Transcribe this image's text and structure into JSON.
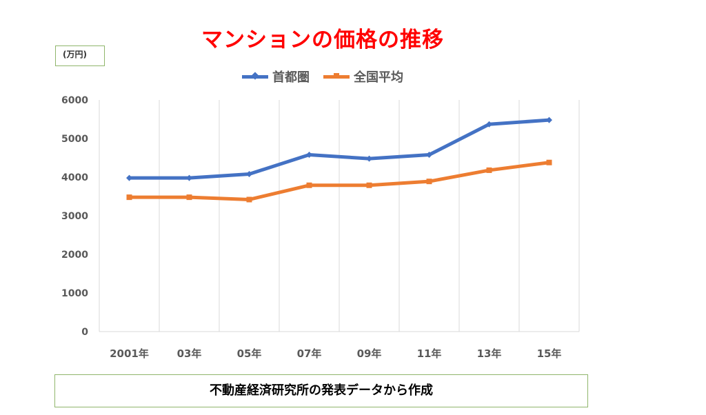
{
  "chart_data": {
    "type": "line",
    "title": "マンションの価格の推移",
    "unit_label": "(万円)",
    "categories": [
      "2001年",
      "03年",
      "05年",
      "07年",
      "09年",
      "11年",
      "13年",
      "15年"
    ],
    "ylim": [
      0,
      6000
    ],
    "yticks": [
      "0",
      "1000",
      "2000",
      "3000",
      "4000",
      "5000",
      "6000"
    ],
    "grid": "vertical",
    "legend_position": "top",
    "series": [
      {
        "name": "首都圏",
        "color": "#4472c4",
        "marker": "diamond",
        "values": [
          3980,
          3980,
          4080,
          4580,
          4480,
          4580,
          5370,
          5480
        ]
      },
      {
        "name": "全国平均",
        "color": "#ed7d31",
        "marker": "square",
        "values": [
          3480,
          3480,
          3420,
          3790,
          3790,
          3890,
          4180,
          4380
        ]
      }
    ],
    "source_note": "不動産経済研究所の発表データから作成"
  }
}
